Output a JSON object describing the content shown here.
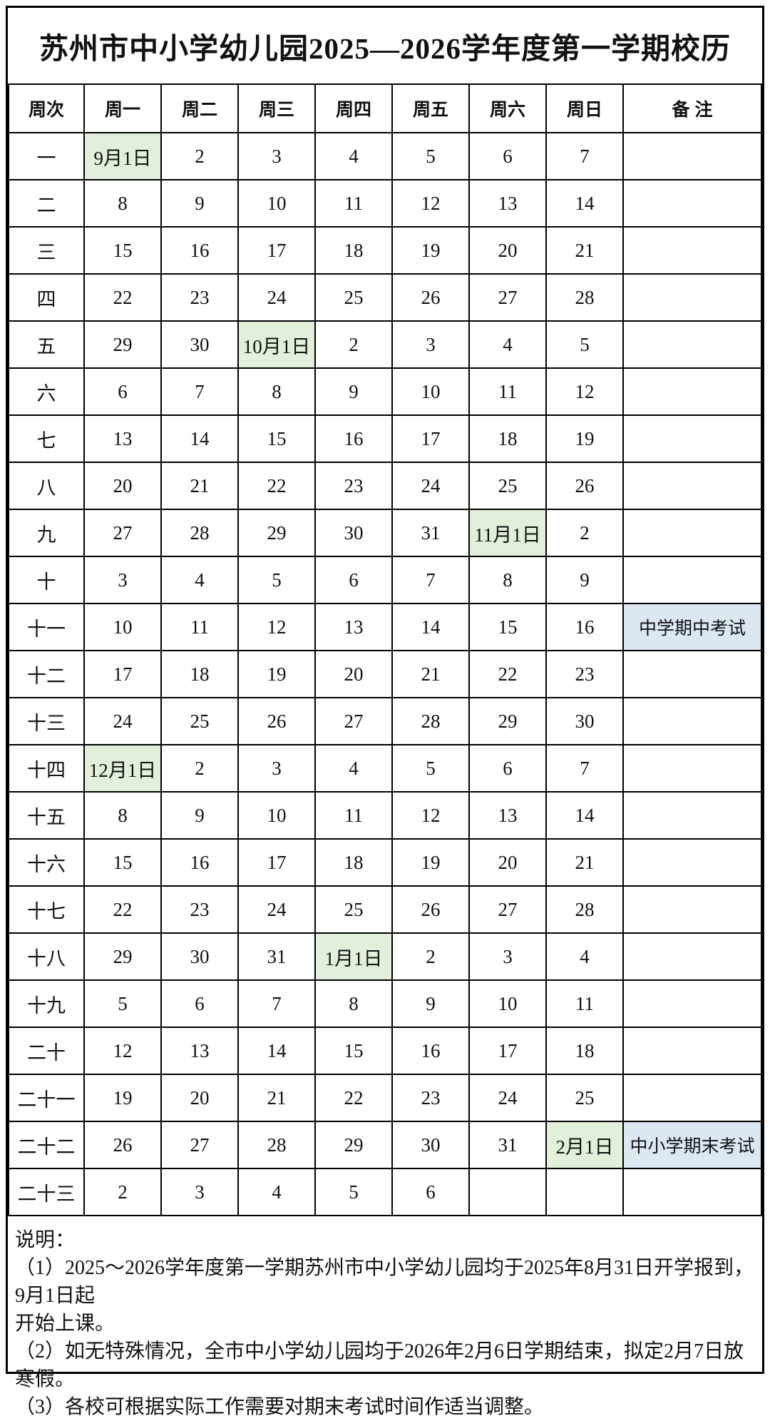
{
  "title": "苏州市中小学幼儿园2025—2026学年度第一学期校历",
  "colors": {
    "holiday_green": "#e2efda",
    "exam_blue": "#dbe7f3",
    "border_black": "#000000"
  },
  "table": {
    "headers": [
      "周次",
      "周一",
      "周二",
      "周三",
      "周四",
      "周五",
      "周六",
      "周日",
      "备 注"
    ],
    "rows": [
      {
        "week": "一",
        "days": [
          "9月1日",
          "2",
          "3",
          "4",
          "5",
          "6",
          "7"
        ],
        "green": 0,
        "remark": "",
        "remark_blue": false
      },
      {
        "week": "二",
        "days": [
          "8",
          "9",
          "10",
          "11",
          "12",
          "13",
          "14"
        ],
        "green": null,
        "remark": "",
        "remark_blue": false
      },
      {
        "week": "三",
        "days": [
          "15",
          "16",
          "17",
          "18",
          "19",
          "20",
          "21"
        ],
        "green": null,
        "remark": "",
        "remark_blue": false
      },
      {
        "week": "四",
        "days": [
          "22",
          "23",
          "24",
          "25",
          "26",
          "27",
          "28"
        ],
        "green": null,
        "remark": "",
        "remark_blue": false
      },
      {
        "week": "五",
        "days": [
          "29",
          "30",
          "10月1日",
          "2",
          "3",
          "4",
          "5"
        ],
        "green": 2,
        "remark": "",
        "remark_blue": false
      },
      {
        "week": "六",
        "days": [
          "6",
          "7",
          "8",
          "9",
          "10",
          "11",
          "12"
        ],
        "green": null,
        "remark": "",
        "remark_blue": false
      },
      {
        "week": "七",
        "days": [
          "13",
          "14",
          "15",
          "16",
          "17",
          "18",
          "19"
        ],
        "green": null,
        "remark": "",
        "remark_blue": false
      },
      {
        "week": "八",
        "days": [
          "20",
          "21",
          "22",
          "23",
          "24",
          "25",
          "26"
        ],
        "green": null,
        "remark": "",
        "remark_blue": false
      },
      {
        "week": "九",
        "days": [
          "27",
          "28",
          "29",
          "30",
          "31",
          "11月1日",
          "2"
        ],
        "green": 5,
        "remark": "",
        "remark_blue": false
      },
      {
        "week": "十",
        "days": [
          "3",
          "4",
          "5",
          "6",
          "7",
          "8",
          "9"
        ],
        "green": null,
        "remark": "",
        "remark_blue": false
      },
      {
        "week": "十一",
        "days": [
          "10",
          "11",
          "12",
          "13",
          "14",
          "15",
          "16"
        ],
        "green": null,
        "remark": "中学期中考试",
        "remark_blue": true
      },
      {
        "week": "十二",
        "days": [
          "17",
          "18",
          "19",
          "20",
          "21",
          "22",
          "23"
        ],
        "green": null,
        "remark": "",
        "remark_blue": false
      },
      {
        "week": "十三",
        "days": [
          "24",
          "25",
          "26",
          "27",
          "28",
          "29",
          "30"
        ],
        "green": null,
        "remark": "",
        "remark_blue": false
      },
      {
        "week": "十四",
        "days": [
          "12月1日",
          "2",
          "3",
          "4",
          "5",
          "6",
          "7"
        ],
        "green": 0,
        "remark": "",
        "remark_blue": false
      },
      {
        "week": "十五",
        "days": [
          "8",
          "9",
          "10",
          "11",
          "12",
          "13",
          "14"
        ],
        "green": null,
        "remark": "",
        "remark_blue": false
      },
      {
        "week": "十六",
        "days": [
          "15",
          "16",
          "17",
          "18",
          "19",
          "20",
          "21"
        ],
        "green": null,
        "remark": "",
        "remark_blue": false
      },
      {
        "week": "十七",
        "days": [
          "22",
          "23",
          "24",
          "25",
          "26",
          "27",
          "28"
        ],
        "green": null,
        "remark": "",
        "remark_blue": false
      },
      {
        "week": "十八",
        "days": [
          "29",
          "30",
          "31",
          "1月1日",
          "2",
          "3",
          "4"
        ],
        "green": 3,
        "remark": "",
        "remark_blue": false
      },
      {
        "week": "十九",
        "days": [
          "5",
          "6",
          "7",
          "8",
          "9",
          "10",
          "11"
        ],
        "green": null,
        "remark": "",
        "remark_blue": false
      },
      {
        "week": "二十",
        "days": [
          "12",
          "13",
          "14",
          "15",
          "16",
          "17",
          "18"
        ],
        "green": null,
        "remark": "",
        "remark_blue": false
      },
      {
        "week": "二十一",
        "days": [
          "19",
          "20",
          "21",
          "22",
          "23",
          "24",
          "25"
        ],
        "green": null,
        "remark": "",
        "remark_blue": false
      },
      {
        "week": "二十二",
        "days": [
          "26",
          "27",
          "28",
          "29",
          "30",
          "31",
          "2月1日"
        ],
        "green": 6,
        "remark": "中小学期末考试",
        "remark_blue": true
      },
      {
        "week": "二十三",
        "days": [
          "2",
          "3",
          "4",
          "5",
          "6",
          "",
          ""
        ],
        "green": null,
        "remark": "",
        "remark_blue": false
      }
    ]
  },
  "notes": {
    "lines": [
      "说明：",
      "（1）2025～2026学年度第一学期苏州市中小学幼儿园均于2025年8月31日开学报到，9月1日起",
      "开始上课。",
      "（2）如无特殊情况，全市中小学幼儿园均于2026年2月6日学期结束，拟定2月7日放寒假。",
      "（3）各校可根据实际工作需要对期末考试时间作适当调整。"
    ]
  }
}
